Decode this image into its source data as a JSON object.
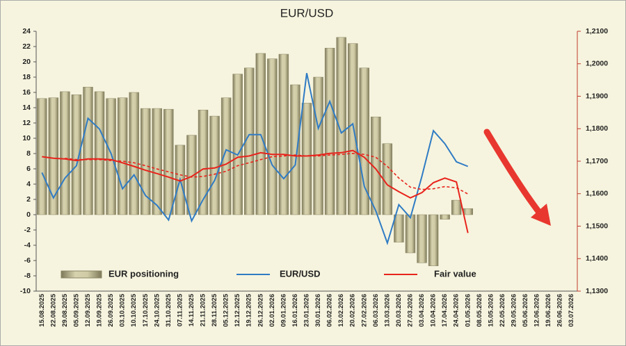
{
  "chart_data": {
    "type": "bar_line",
    "title": "EUR/USD",
    "categories": [
      "15.08.2025",
      "22.08.2025",
      "29.08.2025",
      "05.09.2025",
      "12.09.2025",
      "19.09.2025",
      "26.09.2025",
      "03.10.2025",
      "10.10.2025",
      "17.10.2025",
      "24.10.2025",
      "31.10.2025",
      "07.11.2025",
      "14.11.2025",
      "21.11.2025",
      "28.11.2025",
      "05.12.2025",
      "12.12.2025",
      "19.12.2025",
      "26.12.2025",
      "02.01.2026",
      "09.01.2026",
      "16.01.2026",
      "23.01.2026",
      "30.01.2026",
      "06.02.2026",
      "13.02.2026",
      "20.02.2026",
      "27.02.2026",
      "06.03.2026",
      "13.03.2026",
      "20.03.2026",
      "27.03.2026",
      "03.04.2026",
      "10.04.2026",
      "17.04.2026",
      "24.04.2026",
      "01.05.2026",
      "08.05.2026",
      "15.05.2026",
      "22.05.2026",
      "29.05.2026",
      "05.06.2026",
      "12.06.2026",
      "19.06.2026",
      "26.06.2026",
      "03.07.2026"
    ],
    "series": [
      {
        "name": "EUR positioning",
        "kind": "bar",
        "color": "#b8b38c",
        "axis": "y",
        "values": [
          15.2,
          15.3,
          16.1,
          15.7,
          16.7,
          16.1,
          15.2,
          15.3,
          16.0,
          13.9,
          13.9,
          13.8,
          9.1,
          10.4,
          13.7,
          12.9,
          15.3,
          18.4,
          19.2,
          21.1,
          20.4,
          21.0,
          17.0,
          14.6,
          18.0,
          21.8,
          23.2,
          22.4,
          19.2,
          12.8,
          9.3,
          -3.6,
          -5.0,
          -6.3,
          -6.7,
          -0.6,
          1.9,
          0.8,
          null,
          null,
          null,
          null,
          null,
          null,
          null,
          null,
          null
        ]
      },
      {
        "name": "EUR/USD",
        "kind": "line",
        "color": "#2f7bc4",
        "axis": "y2",
        "values": [
          1.1665,
          1.1587,
          1.1648,
          1.1686,
          1.1832,
          1.1799,
          1.1724,
          1.1615,
          1.1658,
          1.1594,
          1.1564,
          1.1519,
          1.1644,
          1.1516,
          1.1582,
          1.1641,
          1.1735,
          1.1719,
          1.1782,
          1.1782,
          1.1688,
          1.1646,
          1.1688,
          1.1971,
          1.1801,
          1.1884,
          1.1787,
          1.1815,
          1.1622,
          1.1547,
          1.1448,
          1.1566,
          1.1526,
          1.1653,
          1.1794,
          1.1754,
          1.1698,
          1.1684,
          null,
          null,
          null,
          null,
          null,
          null,
          null,
          null,
          null
        ]
      },
      {
        "name": "Fair value",
        "kind": "line",
        "color": "#e8231c",
        "axis": "y2",
        "values": [
          1.1714,
          1.1709,
          1.1707,
          1.1702,
          1.1707,
          1.1707,
          1.1705,
          1.1695,
          1.1684,
          1.1672,
          1.1662,
          1.1651,
          1.1639,
          1.1653,
          1.1676,
          1.1679,
          1.1691,
          1.1712,
          1.1716,
          1.1726,
          1.1721,
          1.1721,
          1.1716,
          1.1716,
          1.1719,
          1.1724,
          1.1726,
          1.1733,
          1.1712,
          1.1676,
          1.1627,
          1.1606,
          1.1587,
          1.1603,
          1.1634,
          1.1648,
          1.1636,
          1.1479,
          null,
          null,
          null,
          null,
          null,
          null,
          null,
          null,
          null
        ]
      },
      {
        "kind": "line",
        "dashed": true,
        "color": "#e8231c",
        "axis": "y2",
        "values": [
          null,
          null,
          1.1709,
          1.1705,
          1.1705,
          1.1705,
          1.1702,
          1.17,
          1.1695,
          1.1686,
          1.1676,
          1.1667,
          1.1658,
          1.1651,
          1.1653,
          1.166,
          1.1669,
          1.1686,
          1.1695,
          1.1705,
          1.1714,
          1.1716,
          1.1719,
          1.1716,
          1.1716,
          1.1719,
          1.1721,
          1.1724,
          1.1721,
          1.1712,
          1.1684,
          1.1648,
          1.162,
          1.1613,
          1.1615,
          1.1622,
          1.1618,
          1.1599,
          null,
          null,
          null,
          null,
          null,
          null,
          null,
          null,
          null
        ]
      }
    ],
    "ylim": [
      -10,
      24
    ],
    "yticks": [
      -10,
      -8,
      -6,
      -4,
      -2,
      0,
      2,
      4,
      6,
      8,
      10,
      12,
      14,
      16,
      18,
      20,
      22,
      24
    ],
    "y2lim": [
      1.13,
      1.21
    ],
    "y2ticks": [
      {
        "value": 1.13,
        "label": "1,1300"
      },
      {
        "value": 1.14,
        "label": "1,1400"
      },
      {
        "value": 1.15,
        "label": "1,1500"
      },
      {
        "value": 1.16,
        "label": "1,1600"
      },
      {
        "value": 1.17,
        "label": "1,1700"
      },
      {
        "value": 1.18,
        "label": "1,1800"
      },
      {
        "value": 1.19,
        "label": "1,1900"
      },
      {
        "value": 1.2,
        "label": "1,2000"
      },
      {
        "value": 1.21,
        "label": "1,2100"
      }
    ],
    "legend": "bottom-left"
  }
}
